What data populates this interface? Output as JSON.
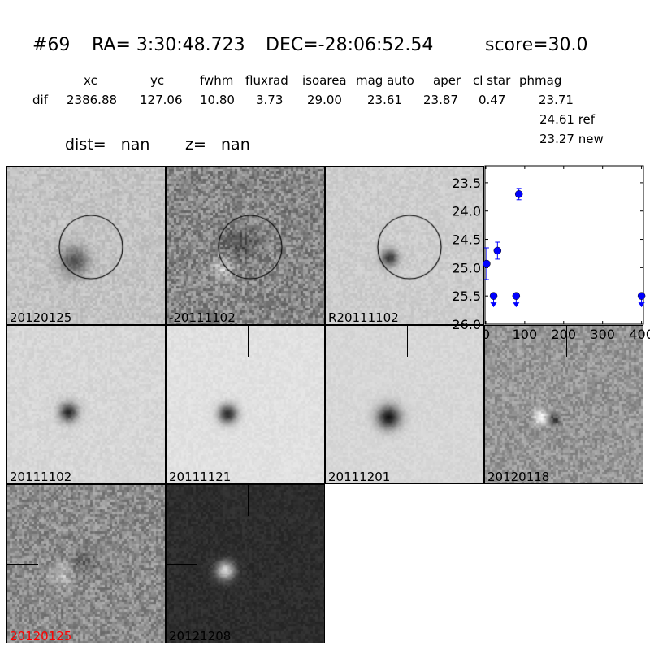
{
  "header": {
    "id": "#69",
    "ra": "RA= 3:30:48.723",
    "dec": "DEC=-28:06:52.54",
    "score": "score=30.0",
    "columns": [
      "xc",
      "yc",
      "fwhm",
      "fluxrad",
      "isoarea",
      "mag auto",
      "aper",
      "cl star",
      "phmag"
    ],
    "row_label": "dif",
    "values": [
      "2386.88",
      "127.06",
      "10.80",
      "3.73",
      "29.00",
      "23.61",
      "23.87",
      "0.47",
      "23.71"
    ],
    "ref": "24.61 ref",
    "new": "23.27 new",
    "dist": "dist=   nan",
    "z": "z=   nan"
  },
  "stamps": [
    {
      "label": "20120125",
      "color": "#000000"
    },
    {
      "label": "-20111102",
      "color": "#000000"
    },
    {
      "label": "R20111102",
      "color": "#000000"
    },
    {
      "label": "20111102",
      "color": "#000000"
    },
    {
      "label": "20111121",
      "color": "#000000"
    },
    {
      "label": "20111201",
      "color": "#000000"
    },
    {
      "label": "20120118",
      "color": "#000000"
    },
    {
      "label": "20120125",
      "color": "#ff0000"
    },
    {
      "label": "20121208",
      "color": "#000000"
    }
  ],
  "chart_data": {
    "type": "scatter",
    "xlim": [
      -2,
      405
    ],
    "ylim": [
      26.0,
      23.2
    ],
    "y_inverted": true,
    "xticks": [
      "0",
      "100",
      "200",
      "300",
      "400"
    ],
    "yticks": [
      "23.5",
      "24.0",
      "24.5",
      "25.0",
      "25.5",
      "26.0"
    ],
    "color": "#0000ff",
    "points": [
      {
        "x": 2,
        "y": 24.93,
        "err": 0.28,
        "upper_limit": false
      },
      {
        "x": 20,
        "y": 25.5,
        "err": 0,
        "upper_limit": true
      },
      {
        "x": 30,
        "y": 24.7,
        "err": 0.15,
        "upper_limit": false
      },
      {
        "x": 78,
        "y": 25.5,
        "err": 0,
        "upper_limit": true
      },
      {
        "x": 85,
        "y": 23.7,
        "err": 0.1,
        "upper_limit": false
      },
      {
        "x": 400,
        "y": 25.5,
        "err": 0,
        "upper_limit": true
      }
    ]
  }
}
